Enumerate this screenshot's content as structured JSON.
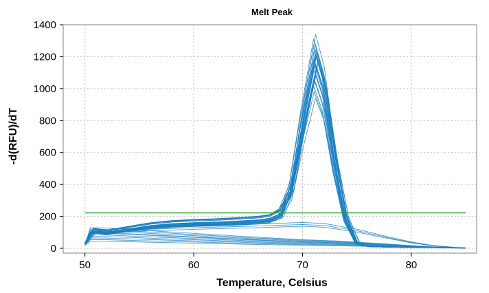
{
  "chart_data": {
    "type": "line",
    "title": "Melt Peak",
    "xlabel": "Temperature, Celsius",
    "ylabel": "-d(RFU)/dT",
    "xlim": [
      48,
      86
    ],
    "ylim": [
      -30,
      1400
    ],
    "x_ticks": [
      50,
      60,
      70,
      80
    ],
    "y_ticks": [
      0,
      200,
      400,
      600,
      800,
      1000,
      1200,
      1400
    ],
    "grid": true,
    "legend": "none",
    "colors": {
      "series": "#1a7fbf",
      "threshold": "#2ca02c"
    },
    "threshold": {
      "y": 222,
      "x": [
        50,
        85
      ]
    },
    "series_groups": {
      "amplified": {
        "peak_temperature_range": [
          70.9,
          71.5
        ],
        "peak_heights": [
          1340,
          1310,
          1280,
          1260,
          1250,
          1240,
          1230,
          1220,
          1210,
          1200,
          1190,
          1180,
          1170,
          1160,
          1150,
          1140,
          1120,
          1100,
          1080,
          1060,
          1050,
          1020,
          980,
          940
        ],
        "shape_points": [
          [
            50.0,
            30
          ],
          [
            50.4,
            80
          ],
          [
            50.8,
            110
          ],
          [
            52,
            100
          ],
          [
            54,
            120
          ],
          [
            56,
            140
          ],
          [
            58,
            152
          ],
          [
            60,
            158
          ],
          [
            62,
            162
          ],
          [
            64,
            168
          ],
          [
            66,
            176
          ],
          [
            67,
            185
          ],
          [
            68,
            215
          ],
          [
            69,
            380
          ],
          [
            70,
            780
          ],
          [
            71.2,
            1200
          ],
          [
            72,
            1020
          ],
          [
            73,
            560
          ],
          [
            74,
            200
          ],
          [
            75,
            35
          ],
          [
            76,
            12
          ],
          [
            78,
            8
          ],
          [
            80,
            6
          ],
          [
            82,
            5
          ],
          [
            84,
            3
          ],
          [
            85,
            2
          ]
        ]
      },
      "baseline": {
        "start_heights": [
          130,
          120,
          110,
          100,
          95,
          85,
          75,
          65,
          55,
          45
        ],
        "shape_points": [
          [
            50.0,
            20
          ],
          [
            50.5,
            1
          ],
          [
            52,
            0.98
          ],
          [
            55,
            0.88
          ],
          [
            60,
            0.72
          ],
          [
            65,
            0.56
          ],
          [
            70,
            0.42
          ],
          [
            73,
            0.36
          ],
          [
            75,
            0.3
          ],
          [
            78,
            0.2
          ],
          [
            80,
            0.13
          ],
          [
            82,
            0.07
          ],
          [
            84,
            0.03
          ],
          [
            85,
            0.01
          ]
        ]
      },
      "broad_hump": {
        "shape_points": [
          [
            50,
            30
          ],
          [
            51,
            110
          ],
          [
            53,
            120
          ],
          [
            56,
            130
          ],
          [
            60,
            140
          ],
          [
            65,
            150
          ],
          [
            70,
            162
          ],
          [
            72,
            155
          ],
          [
            75,
            120
          ],
          [
            78,
            70
          ],
          [
            80,
            40
          ],
          [
            82,
            18
          ],
          [
            84,
            6
          ],
          [
            85,
            3
          ]
        ]
      }
    }
  }
}
